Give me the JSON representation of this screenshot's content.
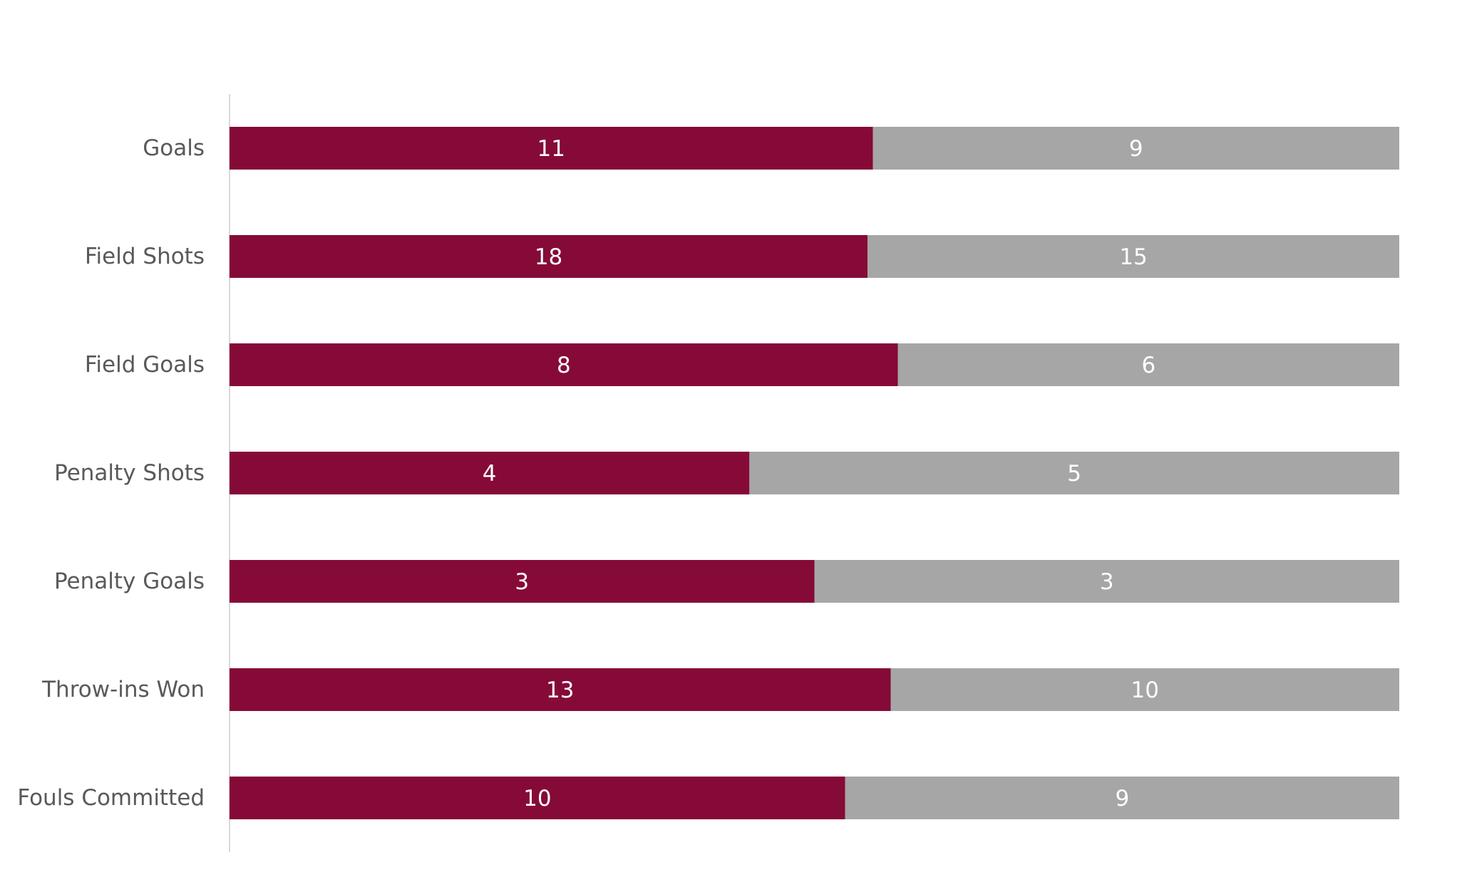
{
  "chart_data": {
    "type": "bar",
    "orientation": "horizontal",
    "stacked": "percent",
    "title": "",
    "xlabel": "",
    "ylabel": "",
    "legend": "none",
    "grid": false,
    "categories": [
      "Goals",
      "Field Shots",
      "Field Goals",
      "Penalty Shots",
      "Penalty Goals",
      "Throw-ins Won",
      "Fouls Committed"
    ],
    "series": [
      {
        "values": [
          11,
          18,
          8,
          4,
          3,
          13,
          10
        ],
        "color": "#850a37",
        "label_color": "#ffffff"
      },
      {
        "values": [
          9,
          15,
          6,
          5,
          3,
          10,
          9
        ],
        "color": "#a6a6a6",
        "label_color": "#ffffff"
      }
    ],
    "axis_color": "#d9d9d9",
    "category_label_color": "#595959"
  }
}
